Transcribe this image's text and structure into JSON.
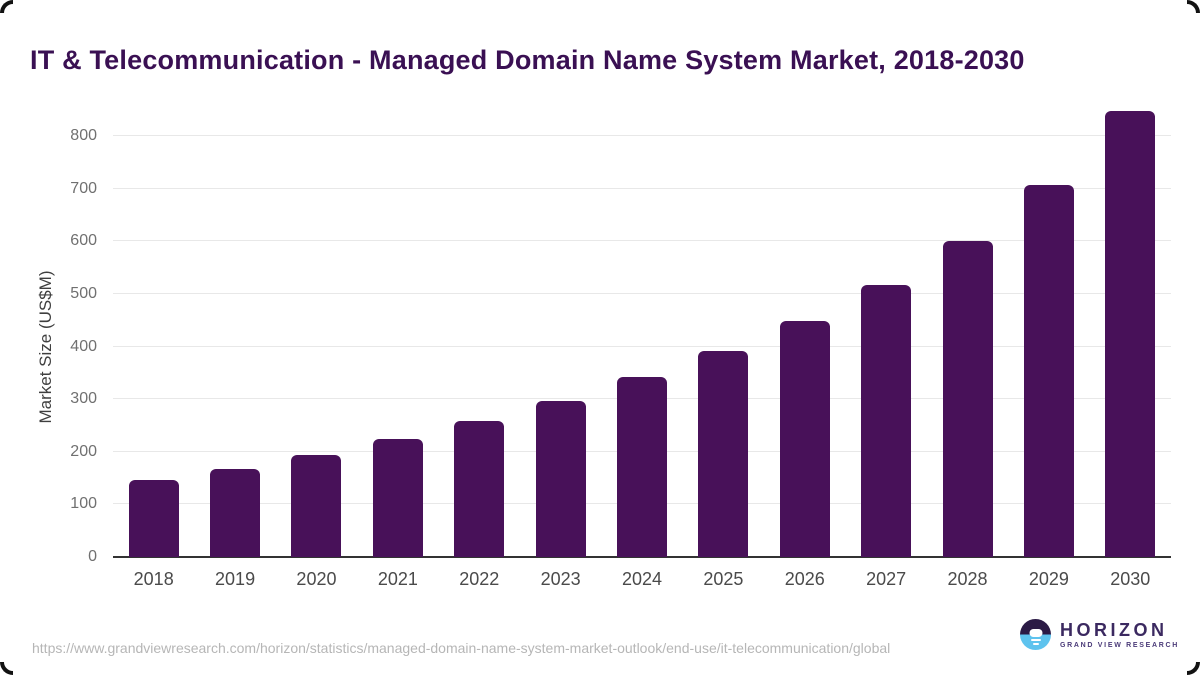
{
  "header": {
    "title": "IT & Telecommunication - Managed Domain Name System Market, 2018-2030"
  },
  "chart_data": {
    "type": "bar",
    "title": "IT & Telecommunication - Managed Domain Name System Market, 2018-2030",
    "categories": [
      "2018",
      "2019",
      "2020",
      "2021",
      "2022",
      "2023",
      "2024",
      "2025",
      "2026",
      "2027",
      "2028",
      "2029",
      "2030"
    ],
    "values": [
      146,
      168,
      194,
      225,
      258,
      297,
      343,
      392,
      449,
      517,
      600,
      708,
      847
    ],
    "xlabel": "",
    "ylabel": "Market Size (US$M)",
    "yticks": [
      0,
      100,
      200,
      300,
      400,
      500,
      600,
      700,
      800
    ],
    "ylim": [
      0,
      869
    ],
    "grid": "horizontal",
    "legend": "none",
    "bar_color": "#481159"
  },
  "footer": {
    "source_url": "https://www.grandviewresearch.com/horizon/statistics/managed-domain-name-system-market-outlook/end-use/it-telecommunication/global",
    "logo": {
      "name": "HORIZON",
      "subtitle": "GRAND VIEW RESEARCH"
    }
  },
  "colors": {
    "bar": "#481159",
    "title": "#3a1053",
    "gridline": "#e8e8e8",
    "axis_line": "#333333",
    "tick_label": "#707070",
    "x_label": "#4a4a4a",
    "source_text": "#b6b6b6",
    "logo_dark": "#2b1a45",
    "logo_blue": "#5ec3ee"
  }
}
